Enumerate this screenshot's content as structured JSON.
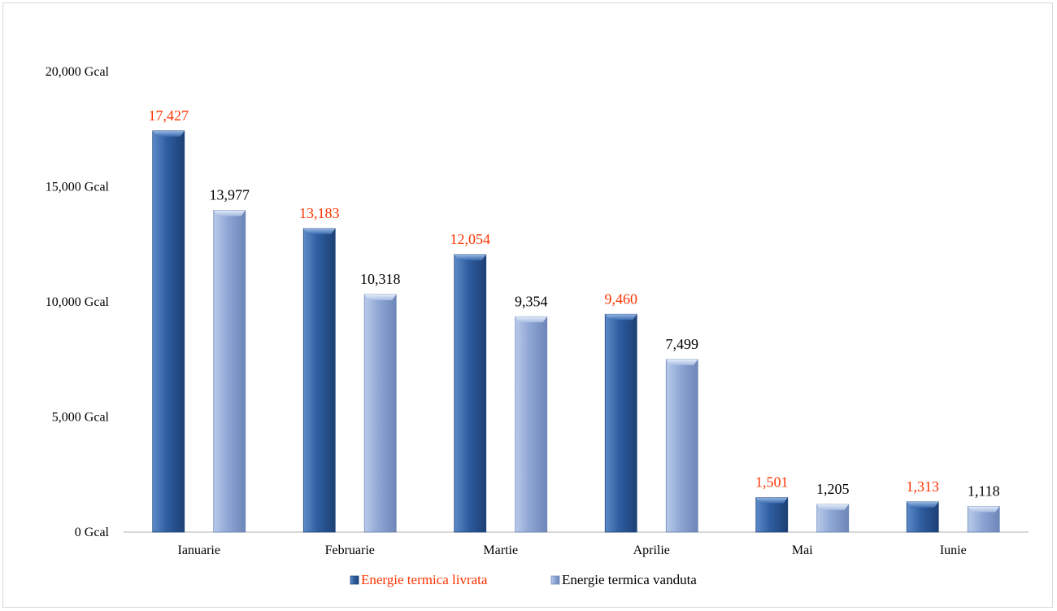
{
  "chart_data": {
    "type": "bar",
    "title": "",
    "xlabel": "",
    "ylabel": "",
    "categories": [
      "Ianuarie",
      "Februarie",
      "Martie",
      "Aprilie",
      "Mai",
      "Iunie"
    ],
    "series": [
      {
        "name": "Energie termica livrata",
        "values": [
          17427,
          13183,
          12054,
          9460,
          1501,
          1313
        ],
        "data_labels": [
          "17,427",
          "13,183",
          "12,054",
          "9,460",
          "1,501",
          "1,313"
        ],
        "color": "#2e5d9f",
        "label_color": "#ff3300"
      },
      {
        "name": "Energie termica vanduta",
        "values": [
          13977,
          10318,
          9354,
          7499,
          1205,
          1118
        ],
        "data_labels": [
          "13,977",
          "10,318",
          "9,354",
          "7,499",
          "1,205",
          "1,118"
        ],
        "color": "#8ea6d4",
        "label_color": "#000000"
      }
    ],
    "ylim": [
      0,
      20000
    ],
    "y_ticks": [
      0,
      5000,
      10000,
      15000,
      20000
    ],
    "y_tick_labels": [
      "0 Gcal",
      "5,000 Gcal",
      "10,000 Gcal",
      "15,000 Gcal",
      "20,000 Gcal"
    ],
    "grid": false,
    "legend_position": "bottom"
  }
}
